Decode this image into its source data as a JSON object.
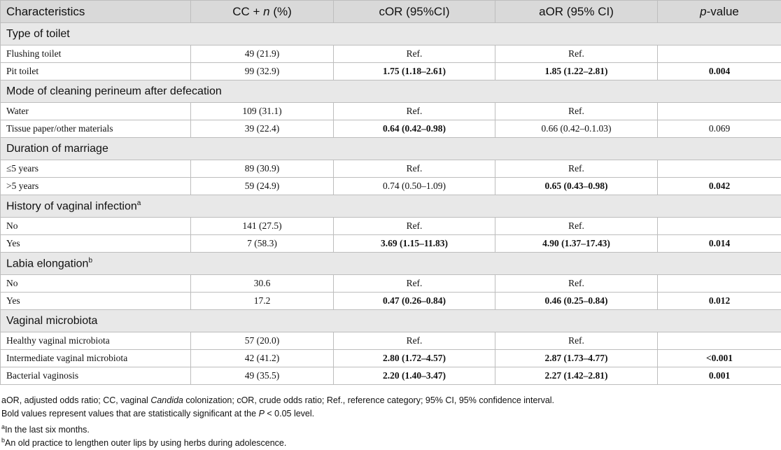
{
  "headers": {
    "characteristics": "Characteristics",
    "cc_prefix": "CC + ",
    "cc_n": "n",
    "cc_suffix": " (%)",
    "cor": "cOR (95%CI)",
    "aor": "aOR (95% CI)",
    "p_italic": "p",
    "p_suffix": "-value"
  },
  "groups": [
    {
      "title": "Type of toilet",
      "sup": "",
      "rows": [
        {
          "label": "Flushing toilet",
          "cc": "49 (21.9)",
          "cor": "Ref.",
          "cor_bold": false,
          "aor": "Ref.",
          "aor_bold": false,
          "p": "",
          "p_bold": false
        },
        {
          "label": "Pit toilet",
          "cc": "99 (32.9)",
          "cor": "1.75 (1.18–2.61)",
          "cor_bold": true,
          "aor": "1.85 (1.22–2.81)",
          "aor_bold": true,
          "p": "0.004",
          "p_bold": true
        }
      ]
    },
    {
      "title": "Mode of cleaning perineum after defecation",
      "sup": "",
      "rows": [
        {
          "label": "Water",
          "cc": "109 (31.1)",
          "cor": "Ref.",
          "cor_bold": false,
          "aor": "Ref.",
          "aor_bold": false,
          "p": "",
          "p_bold": false
        },
        {
          "label": "Tissue paper/other materials",
          "cc": "39 (22.4)",
          "cor": "0.64 (0.42–0.98)",
          "cor_bold": true,
          "aor": "0.66 (0.42–0.1.03)",
          "aor_bold": false,
          "p": "0.069",
          "p_bold": false
        }
      ]
    },
    {
      "title": "Duration of marriage",
      "sup": "",
      "rows": [
        {
          "label": "≤5 years",
          "cc": "89 (30.9)",
          "cor": "Ref.",
          "cor_bold": false,
          "aor": "Ref.",
          "aor_bold": false,
          "p": "",
          "p_bold": false
        },
        {
          "label": ">5 years",
          "cc": "59 (24.9)",
          "cor": "0.74 (0.50–1.09)",
          "cor_bold": false,
          "aor": "0.65 (0.43–0.98)",
          "aor_bold": true,
          "p": "0.042",
          "p_bold": true
        }
      ]
    },
    {
      "title": "History of vaginal infection",
      "sup": "a",
      "rows": [
        {
          "label": "No",
          "cc": "141 (27.5)",
          "cor": "Ref.",
          "cor_bold": false,
          "aor": "Ref.",
          "aor_bold": false,
          "p": "",
          "p_bold": false
        },
        {
          "label": "Yes",
          "cc": "7 (58.3)",
          "cor": "3.69 (1.15–11.83)",
          "cor_bold": true,
          "aor": "4.90 (1.37–17.43)",
          "aor_bold": true,
          "p": "0.014",
          "p_bold": true
        }
      ]
    },
    {
      "title": "Labia elongation",
      "sup": "b",
      "rows": [
        {
          "label": "No",
          "cc": "30.6",
          "cor": "Ref.",
          "cor_bold": false,
          "aor": "Ref.",
          "aor_bold": false,
          "p": "",
          "p_bold": false
        },
        {
          "label": "Yes",
          "cc": "17.2",
          "cor": "0.47 (0.26–0.84)",
          "cor_bold": true,
          "aor": "0.46 (0.25–0.84)",
          "aor_bold": true,
          "p": "0.012",
          "p_bold": true
        }
      ]
    },
    {
      "title": "Vaginal microbiota",
      "sup": "",
      "rows": [
        {
          "label": "Healthy vaginal microbiota",
          "cc": "57 (20.0)",
          "cor": "Ref.",
          "cor_bold": false,
          "aor": "Ref.",
          "aor_bold": false,
          "p": "",
          "p_bold": false
        },
        {
          "label": "Intermediate vaginal microbiota",
          "cc": "42 (41.2)",
          "cor": "2.80 (1.72–4.57)",
          "cor_bold": true,
          "aor": "2.87 (1.73–4.77)",
          "aor_bold": true,
          "p": "<0.001",
          "p_bold": true
        },
        {
          "label": "Bacterial vaginosis",
          "cc": "49 (35.5)",
          "cor": "2.20 (1.40–3.47)",
          "cor_bold": true,
          "aor": "2.27 (1.42–2.81)",
          "aor_bold": true,
          "p": "0.001",
          "p_bold": true
        }
      ]
    }
  ],
  "notes": {
    "abbrev_pre": "aOR, adjusted odds ratio; CC, vaginal ",
    "abbrev_italic": "Candida",
    "abbrev_post": " colonization; cOR, crude odds ratio; Ref., reference category; 95% CI, 95% confidence interval.",
    "bold_pre": "Bold values represent values that are statistically significant at the ",
    "bold_italic": "P",
    "bold_post": " < 0.05 level.",
    "a_mark": "a",
    "a_text": "In the last six months.",
    "b_mark": "b",
    "b_text": "An old practice to lengthen outer lips by using herbs during adolescence."
  }
}
